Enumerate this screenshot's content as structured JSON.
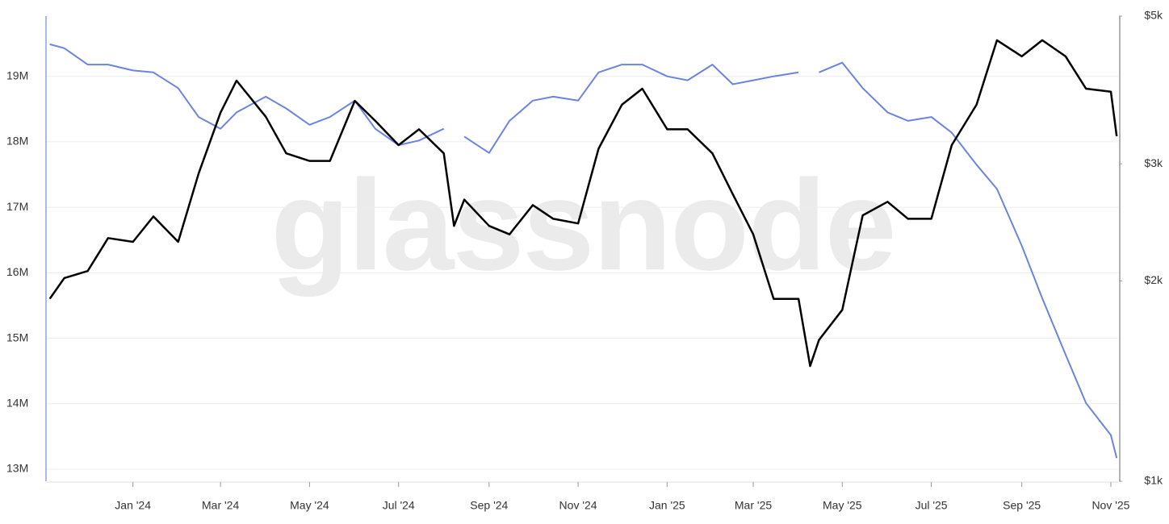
{
  "chart_data": {
    "type": "line",
    "watermark": "glassnode",
    "x": [
      "2023-11-05",
      "2023-11-15",
      "2023-12-01",
      "2023-12-15",
      "2024-01-01",
      "2024-01-15",
      "2024-02-01",
      "2024-02-15",
      "2024-03-01",
      "2024-03-12",
      "2024-04-01",
      "2024-04-15",
      "2024-05-01",
      "2024-05-15",
      "2024-06-01",
      "2024-06-15",
      "2024-07-01",
      "2024-07-15",
      "2024-08-01",
      "2024-08-08",
      "2024-08-15",
      "2024-09-01",
      "2024-09-15",
      "2024-10-01",
      "2024-10-15",
      "2024-11-01",
      "2024-11-15",
      "2024-12-01",
      "2024-12-15",
      "2025-01-01",
      "2025-01-15",
      "2025-02-01",
      "2025-02-15",
      "2025-03-01",
      "2025-03-15",
      "2025-04-01",
      "2025-04-09",
      "2025-04-15",
      "2025-05-01",
      "2025-05-15",
      "2025-06-01",
      "2025-06-15",
      "2025-07-01",
      "2025-07-15",
      "2025-08-01",
      "2025-08-15",
      "2025-09-01",
      "2025-09-15",
      "2025-10-01",
      "2025-10-15",
      "2025-11-01",
      "2025-11-05"
    ],
    "series": [
      {
        "color": "#6b84e0",
        "axis": "y",
        "values": [
          19490000,
          19430000,
          19180000,
          19180000,
          19090000,
          19060000,
          18820000,
          18380000,
          18200000,
          18450000,
          18690000,
          18510000,
          18260000,
          18380000,
          18630000,
          18200000,
          17950000,
          18020000,
          18200000,
          null,
          18080000,
          17830000,
          18320000,
          18630000,
          18690000,
          18630000,
          19060000,
          19180000,
          19180000,
          19000000,
          18940000,
          19180000,
          18880000,
          18940000,
          19000000,
          19060000,
          null,
          19060000,
          19210000,
          18820000,
          18450000,
          18320000,
          18380000,
          18140000,
          17650000,
          17280000,
          16410000,
          15610000,
          14750000,
          14010000,
          13520000,
          13170000
        ]
      },
      {
        "color": "#000000",
        "axis": "y2",
        "values": [
          1880,
          2020,
          2070,
          2320,
          2290,
          2500,
          2290,
          2900,
          3580,
          4000,
          3530,
          3110,
          3030,
          3030,
          3730,
          3480,
          3200,
          3380,
          3110,
          2420,
          2650,
          2420,
          2350,
          2600,
          2480,
          2440,
          3160,
          3680,
          3890,
          3380,
          3380,
          3110,
          2700,
          2350,
          1880,
          1880,
          1490,
          1630,
          1810,
          2510,
          2630,
          2480,
          2480,
          3200,
          3680,
          4600,
          4350,
          4600,
          4350,
          3890,
          3850,
          3300
        ]
      }
    ],
    "xlim": [
      "2023-11-03",
      "2025-11-06"
    ],
    "xticks": [
      {
        "value": "2024-01-01",
        "label": "Jan '24"
      },
      {
        "value": "2024-03-01",
        "label": "Mar '24"
      },
      {
        "value": "2024-05-01",
        "label": "May '24"
      },
      {
        "value": "2024-07-01",
        "label": "Jul '24"
      },
      {
        "value": "2024-09-01",
        "label": "Sep '24"
      },
      {
        "value": "2024-11-01",
        "label": "Nov '24"
      },
      {
        "value": "2025-01-01",
        "label": "Jan '25"
      },
      {
        "value": "2025-03-01",
        "label": "Mar '25"
      },
      {
        "value": "2025-05-01",
        "label": "May '25"
      },
      {
        "value": "2025-07-01",
        "label": "Jul '25"
      },
      {
        "value": "2025-09-01",
        "label": "Sep '25"
      },
      {
        "value": "2025-11-01",
        "label": "Nov '25"
      }
    ],
    "ylim": [
      12815000,
      19920000
    ],
    "yticks": [
      {
        "value": 13000000,
        "label": "13M"
      },
      {
        "value": 14000000,
        "label": "14M"
      },
      {
        "value": 15000000,
        "label": "15M"
      },
      {
        "value": 16000000,
        "label": "16M"
      },
      {
        "value": 17000000,
        "label": "17M"
      },
      {
        "value": 18000000,
        "label": "18M"
      },
      {
        "value": 19000000,
        "label": "19M"
      }
    ],
    "y2lim": [
      1000,
      5000
    ],
    "y2scale": "log",
    "y2ticks": [
      {
        "value": 1000,
        "label": "$1k"
      },
      {
        "value": 2000,
        "label": "$2k"
      },
      {
        "value": 3000,
        "label": "$3k"
      },
      {
        "value": 5000,
        "label": "$5k"
      }
    ],
    "grid": true
  }
}
